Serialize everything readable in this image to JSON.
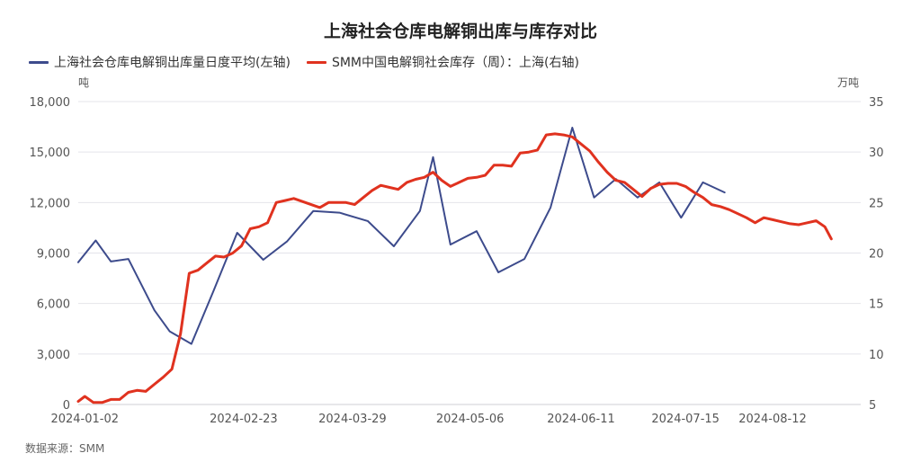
{
  "chart_data": {
    "type": "line",
    "title": "上海社会仓库电解铜出库与库存对比",
    "source": "数据来源：SMM",
    "left_axis": {
      "unit": "吨",
      "min": 0,
      "max": 18000,
      "ticks": [
        "18,000",
        "15,000",
        "12,000",
        "9,000",
        "6,000",
        "3,000",
        "0"
      ]
    },
    "right_axis": {
      "unit": "万吨",
      "min": 5,
      "max": 35,
      "ticks": [
        "35",
        "30",
        "25",
        "20",
        "15",
        "10",
        "5"
      ]
    },
    "x_labels": [
      {
        "label": "2024-01-02",
        "week": 0.3
      },
      {
        "label": "2024-02-23",
        "week": 7.6
      },
      {
        "label": "2024-03-29",
        "week": 12.6
      },
      {
        "label": "2024-05-06",
        "week": 18.0
      },
      {
        "label": "2024-06-11",
        "week": 23.1
      },
      {
        "label": "2024-07-15",
        "week": 27.9
      },
      {
        "label": "2024-08-12",
        "week": 31.9
      }
    ],
    "series": [
      {
        "name": "上海社会仓库电解铜出库量日度平均(左轴)",
        "axis": "left",
        "color": "#3d4b8c",
        "points": [
          [
            0.0,
            8450
          ],
          [
            0.8,
            9750
          ],
          [
            1.5,
            8500
          ],
          [
            2.3,
            8650
          ],
          [
            3.5,
            5600
          ],
          [
            4.2,
            4350
          ],
          [
            5.2,
            3600
          ],
          [
            6.2,
            6700
          ],
          [
            7.3,
            10200
          ],
          [
            8.5,
            8600
          ],
          [
            9.6,
            9700
          ],
          [
            10.8,
            11500
          ],
          [
            12.0,
            11400
          ],
          [
            13.3,
            10900
          ],
          [
            14.5,
            9400
          ],
          [
            15.7,
            11500
          ],
          [
            16.3,
            14700
          ],
          [
            17.1,
            9500
          ],
          [
            18.3,
            10300
          ],
          [
            19.3,
            7850
          ],
          [
            20.5,
            8650
          ],
          [
            21.7,
            11700
          ],
          [
            22.7,
            16450
          ],
          [
            23.7,
            12300
          ],
          [
            24.7,
            13400
          ],
          [
            25.7,
            12300
          ],
          [
            26.7,
            13200
          ],
          [
            27.7,
            11100
          ],
          [
            28.7,
            13200
          ],
          [
            29.7,
            12600
          ]
        ]
      },
      {
        "name": "SMM中国电解铜社会库存（周）：上海(右轴)",
        "axis": "right",
        "color": "#e0321f",
        "points": [
          [
            0.0,
            5.3
          ],
          [
            0.3,
            5.8
          ],
          [
            0.7,
            5.2
          ],
          [
            1.1,
            5.2
          ],
          [
            1.5,
            5.5
          ],
          [
            1.9,
            5.5
          ],
          [
            2.3,
            6.2
          ],
          [
            2.7,
            6.4
          ],
          [
            3.1,
            6.3
          ],
          [
            3.5,
            7.0
          ],
          [
            3.9,
            7.7
          ],
          [
            4.3,
            8.5
          ],
          [
            4.7,
            12.0
          ],
          [
            5.1,
            18.0
          ],
          [
            5.5,
            18.3
          ],
          [
            5.9,
            19.0
          ],
          [
            6.3,
            19.7
          ],
          [
            6.7,
            19.6
          ],
          [
            7.1,
            20.0
          ],
          [
            7.5,
            20.7
          ],
          [
            7.9,
            22.4
          ],
          [
            8.3,
            22.6
          ],
          [
            8.7,
            23.0
          ],
          [
            9.1,
            25.0
          ],
          [
            9.5,
            25.2
          ],
          [
            9.9,
            25.4
          ],
          [
            10.3,
            25.1
          ],
          [
            10.7,
            24.8
          ],
          [
            11.1,
            24.5
          ],
          [
            11.5,
            25.0
          ],
          [
            11.9,
            25.0
          ],
          [
            12.3,
            25.0
          ],
          [
            12.7,
            24.8
          ],
          [
            13.1,
            25.5
          ],
          [
            13.5,
            26.2
          ],
          [
            13.9,
            26.7
          ],
          [
            14.3,
            26.5
          ],
          [
            14.7,
            26.3
          ],
          [
            15.1,
            27.0
          ],
          [
            15.5,
            27.3
          ],
          [
            15.9,
            27.5
          ],
          [
            16.3,
            28.0
          ],
          [
            16.7,
            27.2
          ],
          [
            17.1,
            26.6
          ],
          [
            17.5,
            27.0
          ],
          [
            17.9,
            27.4
          ],
          [
            18.3,
            27.5
          ],
          [
            18.7,
            27.7
          ],
          [
            19.1,
            28.7
          ],
          [
            19.5,
            28.7
          ],
          [
            19.9,
            28.6
          ],
          [
            20.3,
            29.9
          ],
          [
            20.7,
            30.0
          ],
          [
            21.1,
            30.2
          ],
          [
            21.5,
            31.7
          ],
          [
            21.9,
            31.8
          ],
          [
            22.3,
            31.7
          ],
          [
            22.7,
            31.5
          ],
          [
            23.1,
            30.8
          ],
          [
            23.5,
            30.1
          ],
          [
            23.9,
            29.0
          ],
          [
            24.3,
            28.0
          ],
          [
            24.7,
            27.2
          ],
          [
            25.1,
            27.0
          ],
          [
            25.5,
            26.3
          ],
          [
            25.9,
            25.6
          ],
          [
            26.3,
            26.4
          ],
          [
            26.7,
            26.8
          ],
          [
            27.1,
            26.9
          ],
          [
            27.5,
            26.9
          ],
          [
            27.9,
            26.6
          ],
          [
            28.3,
            26.0
          ],
          [
            28.7,
            25.5
          ],
          [
            29.1,
            24.8
          ],
          [
            29.5,
            24.6
          ],
          [
            29.9,
            24.3
          ],
          [
            30.3,
            23.9
          ],
          [
            30.7,
            23.5
          ],
          [
            31.1,
            23.0
          ],
          [
            31.5,
            23.5
          ],
          [
            31.9,
            23.3
          ],
          [
            32.3,
            23.1
          ],
          [
            32.7,
            22.9
          ],
          [
            33.1,
            22.8
          ],
          [
            33.5,
            23.0
          ],
          [
            33.9,
            23.2
          ],
          [
            34.3,
            22.6
          ],
          [
            34.6,
            21.4
          ]
        ]
      }
    ],
    "grid": true,
    "legend_position": "top-left"
  }
}
